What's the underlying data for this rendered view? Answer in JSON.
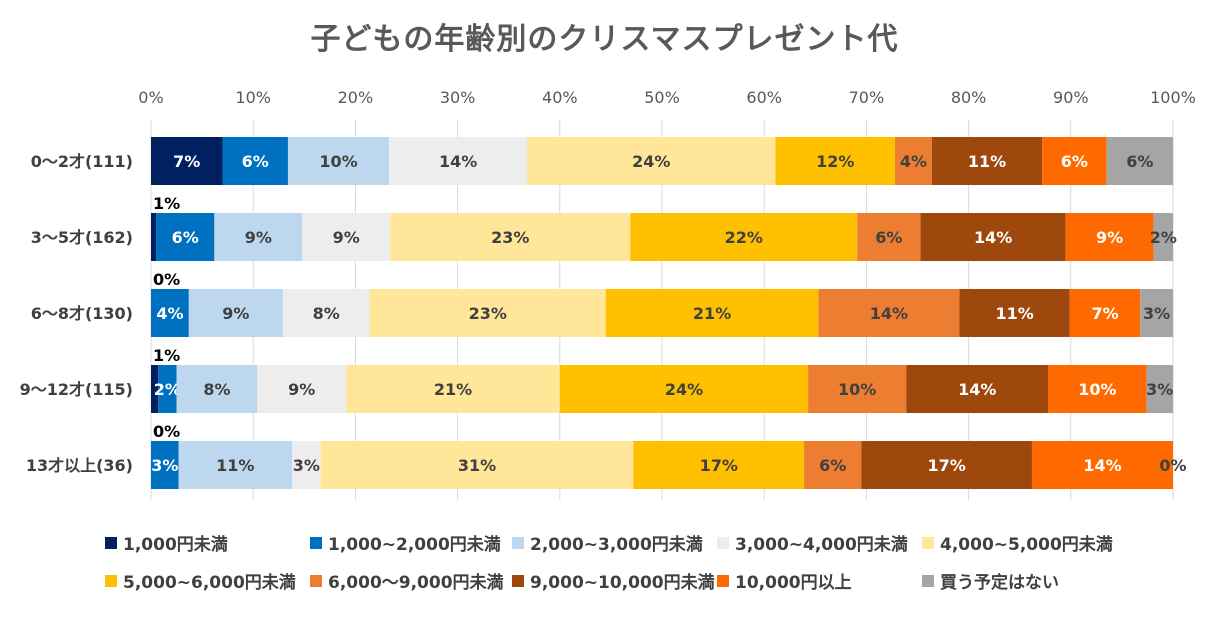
{
  "chart_data": {
    "type": "bar",
    "orientation": "horizontal-stacked-100",
    "title": "子どもの年齢別のクリスマスプレゼント代",
    "categories": [
      "0～2才(111)",
      "3～5才(162)",
      "6～8才(130)",
      "9～12才(115)",
      "13才以上(36)"
    ],
    "xlim": [
      0,
      100
    ],
    "x_ticks": [
      "0%",
      "10%",
      "20%",
      "30%",
      "40%",
      "50%",
      "60%",
      "70%",
      "80%",
      "90%",
      "100%"
    ],
    "legend_position": "bottom",
    "grid": true,
    "series": [
      {
        "name": "1,000円未満",
        "color": "#002060",
        "label_color": "#ffffff",
        "values": [
          7,
          0.5,
          0,
          0.7,
          0
        ],
        "labels": [
          "7%",
          "1%",
          "0%",
          "1%",
          "0%"
        ]
      },
      {
        "name": "1,000~2,000円未満",
        "color": "#0070c0",
        "label_color": "#ffffff",
        "values": [
          6.4,
          5.7,
          3.7,
          1.8,
          2.7
        ],
        "labels": [
          "6%",
          "6%",
          "4%",
          "2%",
          "3%"
        ]
      },
      {
        "name": "2,000~3,000円未満",
        "color": "#bdd7ee",
        "label_color": "#404040",
        "values": [
          9.9,
          8.6,
          9.2,
          7.9,
          11.1
        ],
        "labels": [
          "10%",
          "9%",
          "9%",
          "8%",
          "11%"
        ]
      },
      {
        "name": "3,000~4,000円未満",
        "color": "#ededed",
        "label_color": "#404040",
        "values": [
          13.5,
          8.6,
          8.5,
          8.7,
          2.8
        ],
        "labels": [
          "14%",
          "9%",
          "8%",
          "9%",
          "3%"
        ]
      },
      {
        "name": "4,000~5,000円未満",
        "color": "#ffe699",
        "label_color": "#404040",
        "values": [
          24.3,
          23.5,
          23.1,
          20.9,
          30.6
        ],
        "labels": [
          "24%",
          "23%",
          "23%",
          "21%",
          "31%"
        ]
      },
      {
        "name": "5,000~6,000円未満",
        "color": "#ffc000",
        "label_color": "#404040",
        "values": [
          11.7,
          22.2,
          20.8,
          24.3,
          16.7
        ],
        "labels": [
          "12%",
          "22%",
          "21%",
          "24%",
          "17%"
        ]
      },
      {
        "name": "6,000～9,000円未満",
        "color": "#ed7d31",
        "label_color": "#404040",
        "values": [
          3.6,
          6.2,
          13.8,
          9.6,
          5.6
        ],
        "labels": [
          "4%",
          "6%",
          "14%",
          "10%",
          "6%"
        ]
      },
      {
        "name": "9,000~10,000円未満",
        "color": "#9e480e",
        "label_color": "#ffffff",
        "values": [
          10.8,
          14.2,
          10.8,
          13.9,
          16.7
        ],
        "labels": [
          "11%",
          "14%",
          "11%",
          "14%",
          "17%"
        ]
      },
      {
        "name": "10,000円以上",
        "color": "#ff6a00",
        "label_color": "#ffffff",
        "values": [
          6.3,
          8.6,
          6.9,
          9.6,
          13.8
        ],
        "labels": [
          "6%",
          "9%",
          "7%",
          "10%",
          "14%"
        ]
      },
      {
        "name": "買う予定はない",
        "color": "#a5a5a5",
        "label_color": "#404040",
        "values": [
          6.5,
          1.9,
          3.2,
          2.6,
          0
        ],
        "labels": [
          "6%",
          "2%",
          "3%",
          "3%",
          "0%"
        ]
      }
    ]
  }
}
